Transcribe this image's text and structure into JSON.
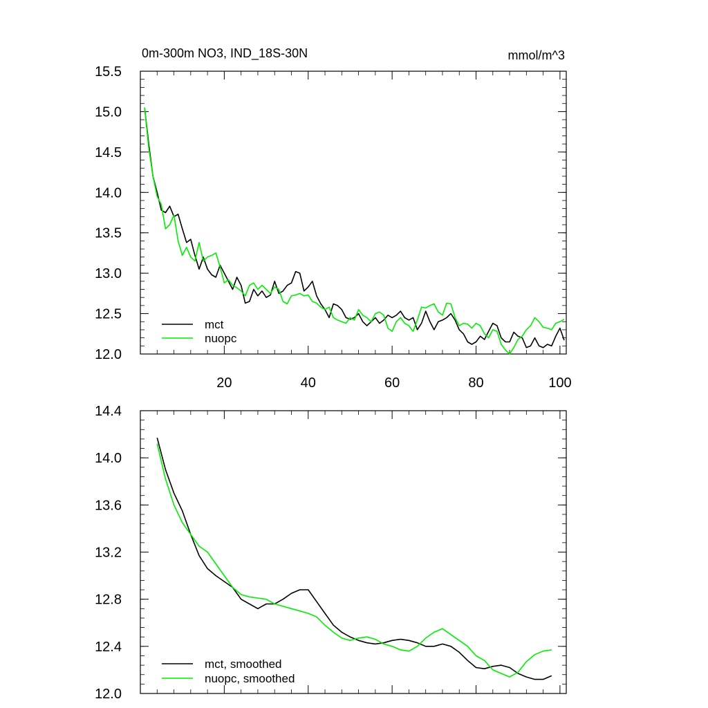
{
  "chart_data": [
    {
      "type": "line",
      "title": "0m-300m NO3, IND_18S-30N",
      "units": "mmol/m^3",
      "xlabel": "",
      "ylabel": "",
      "xlim": [
        0,
        101.5
      ],
      "ylim": [
        12.0,
        15.5
      ],
      "xticks": [
        20,
        40,
        60,
        80,
        100
      ],
      "xtick_labels": [
        "20",
        "40",
        "60",
        "80",
        "100"
      ],
      "yticks": [
        12.0,
        12.5,
        13.0,
        13.5,
        14.0,
        14.5,
        15.0,
        15.5
      ],
      "ytick_labels": [
        "12.0",
        "12.5",
        "13.0",
        "13.5",
        "14.0",
        "14.5",
        "15.0",
        "15.5"
      ],
      "legend_position": "bottom-left",
      "series": [
        {
          "name": "mct",
          "color": "#000000",
          "x": [
            1,
            2,
            3,
            4,
            5,
            6,
            7,
            8,
            9,
            10,
            11,
            12,
            13,
            14,
            15,
            16,
            17,
            18,
            19,
            20,
            21,
            22,
            23,
            24,
            25,
            26,
            27,
            28,
            29,
            30,
            31,
            32,
            33,
            34,
            35,
            36,
            37,
            38,
            39,
            40,
            41,
            42,
            43,
            44,
            45,
            46,
            47,
            48,
            49,
            50,
            51,
            52,
            53,
            54,
            55,
            56,
            57,
            58,
            59,
            60,
            61,
            62,
            63,
            64,
            65,
            66,
            67,
            68,
            69,
            70,
            71,
            72,
            73,
            74,
            75,
            76,
            77,
            78,
            79,
            80,
            81,
            82,
            83,
            84,
            85,
            86,
            87,
            88,
            89,
            90,
            91,
            92,
            93,
            94,
            95,
            96,
            97,
            98,
            99,
            100,
            101
          ],
          "values": [
            15.05,
            14.6,
            14.2,
            14.0,
            13.78,
            13.75,
            13.83,
            13.7,
            13.73,
            13.55,
            13.38,
            13.42,
            13.22,
            13.05,
            13.2,
            13.05,
            12.98,
            12.95,
            13.1,
            13.0,
            12.9,
            12.8,
            12.95,
            12.85,
            12.63,
            12.65,
            12.8,
            12.72,
            12.78,
            12.7,
            12.73,
            12.9,
            12.75,
            12.78,
            12.85,
            12.88,
            13.02,
            13.0,
            12.78,
            12.83,
            12.9,
            12.72,
            12.62,
            12.55,
            12.45,
            12.62,
            12.6,
            12.55,
            12.45,
            12.43,
            12.45,
            12.5,
            12.4,
            12.35,
            12.4,
            12.45,
            12.38,
            12.42,
            12.48,
            12.45,
            12.48,
            12.53,
            12.45,
            12.42,
            12.45,
            12.3,
            12.38,
            12.53,
            12.4,
            12.3,
            12.4,
            12.42,
            12.45,
            12.5,
            12.42,
            12.3,
            12.25,
            12.15,
            12.12,
            12.15,
            12.22,
            12.18,
            12.28,
            12.38,
            12.35,
            12.2,
            12.15,
            12.15,
            12.27,
            12.22,
            12.2,
            12.08,
            12.1,
            12.2,
            12.1,
            12.08,
            12.12,
            12.1,
            12.22,
            12.32,
            12.17
          ]
        },
        {
          "name": "nuopc",
          "color": "#00ee00",
          "x": [
            1,
            2,
            3,
            4,
            5,
            6,
            7,
            8,
            9,
            10,
            11,
            12,
            13,
            14,
            15,
            16,
            17,
            18,
            19,
            20,
            21,
            22,
            23,
            24,
            25,
            26,
            27,
            28,
            29,
            30,
            31,
            32,
            33,
            34,
            35,
            36,
            37,
            38,
            39,
            40,
            41,
            42,
            43,
            44,
            45,
            46,
            47,
            48,
            49,
            50,
            51,
            52,
            53,
            54,
            55,
            56,
            57,
            58,
            59,
            60,
            61,
            62,
            63,
            64,
            65,
            66,
            67,
            68,
            69,
            70,
            71,
            72,
            73,
            74,
            75,
            76,
            77,
            78,
            79,
            80,
            81,
            82,
            83,
            84,
            85,
            86,
            87,
            88,
            89,
            90,
            91,
            92,
            93,
            94,
            95,
            96,
            97,
            98,
            99,
            100,
            101
          ],
          "values": [
            15.05,
            14.55,
            14.2,
            13.95,
            13.85,
            13.55,
            13.6,
            13.72,
            13.4,
            13.22,
            13.32,
            13.2,
            13.15,
            13.38,
            13.15,
            13.2,
            13.22,
            13.25,
            13.08,
            12.88,
            12.92,
            12.85,
            12.82,
            12.78,
            12.72,
            12.85,
            12.88,
            12.8,
            12.85,
            12.8,
            12.75,
            12.83,
            12.8,
            12.65,
            12.62,
            12.72,
            12.73,
            12.75,
            12.72,
            12.73,
            12.65,
            12.63,
            12.58,
            12.55,
            12.58,
            12.45,
            12.42,
            12.4,
            12.38,
            12.45,
            12.42,
            12.55,
            12.48,
            12.45,
            12.4,
            12.5,
            12.52,
            12.48,
            12.32,
            12.28,
            12.4,
            12.45,
            12.38,
            12.35,
            12.28,
            12.42,
            12.58,
            12.57,
            12.6,
            12.62,
            12.52,
            12.48,
            12.63,
            12.62,
            12.45,
            12.35,
            12.38,
            12.37,
            12.32,
            12.38,
            12.35,
            12.25,
            12.2,
            12.3,
            12.28,
            12.12,
            12.05,
            12.0,
            12.08,
            12.18,
            12.22,
            12.3,
            12.35,
            12.45,
            12.4,
            12.33,
            12.32,
            12.3,
            12.38,
            12.4,
            12.43
          ]
        }
      ]
    },
    {
      "type": "line",
      "title": "",
      "xlabel": "",
      "ylabel": "",
      "xlim": [
        0,
        101.5
      ],
      "ylim": [
        12.0,
        14.4
      ],
      "xticks": [
        20,
        40,
        60,
        80,
        100
      ],
      "xtick_labels": [],
      "yticks": [
        12.0,
        12.4,
        12.8,
        13.2,
        13.6,
        14.0,
        14.4
      ],
      "ytick_labels": [
        "12.0",
        "12.4",
        "12.8",
        "13.2",
        "13.6",
        "14.0",
        "14.4"
      ],
      "legend_position": "bottom-left",
      "series": [
        {
          "name": "mct, smoothed",
          "color": "#000000",
          "x": [
            4,
            6,
            8,
            10,
            12,
            14,
            16,
            18,
            20,
            22,
            24,
            26,
            28,
            30,
            32,
            34,
            36,
            38,
            40,
            42,
            44,
            46,
            48,
            50,
            52,
            54,
            56,
            58,
            60,
            62,
            64,
            66,
            68,
            70,
            72,
            74,
            76,
            78,
            80,
            82,
            84,
            86,
            88,
            90,
            92,
            94,
            96,
            98
          ],
          "values": [
            14.17,
            13.9,
            13.7,
            13.55,
            13.35,
            13.17,
            13.06,
            13.0,
            12.95,
            12.9,
            12.8,
            12.76,
            12.72,
            12.76,
            12.76,
            12.8,
            12.85,
            12.88,
            12.88,
            12.78,
            12.68,
            12.58,
            12.52,
            12.48,
            12.45,
            12.43,
            12.42,
            12.43,
            12.45,
            12.46,
            12.45,
            12.43,
            12.4,
            12.4,
            12.42,
            12.4,
            12.35,
            12.28,
            12.22,
            12.21,
            12.23,
            12.24,
            12.22,
            12.17,
            12.14,
            12.12,
            12.12,
            12.15
          ]
        },
        {
          "name": "nuopc, smoothed",
          "color": "#00ee00",
          "x": [
            4,
            6,
            8,
            10,
            12,
            14,
            16,
            18,
            20,
            22,
            24,
            26,
            28,
            30,
            32,
            34,
            36,
            38,
            40,
            42,
            44,
            46,
            48,
            50,
            52,
            54,
            56,
            58,
            60,
            62,
            64,
            66,
            68,
            70,
            72,
            74,
            76,
            78,
            80,
            82,
            84,
            86,
            88,
            90,
            92,
            94,
            96,
            98
          ],
          "values": [
            14.12,
            13.82,
            13.6,
            13.45,
            13.35,
            13.25,
            13.2,
            13.1,
            13.0,
            12.9,
            12.84,
            12.82,
            12.81,
            12.8,
            12.76,
            12.74,
            12.72,
            12.7,
            12.68,
            12.65,
            12.58,
            12.52,
            12.47,
            12.45,
            12.47,
            12.48,
            12.46,
            12.42,
            12.4,
            12.37,
            12.36,
            12.4,
            12.47,
            12.52,
            12.55,
            12.5,
            12.45,
            12.4,
            12.32,
            12.28,
            12.2,
            12.17,
            12.14,
            12.18,
            12.27,
            12.33,
            12.36,
            12.37
          ]
        }
      ]
    }
  ]
}
